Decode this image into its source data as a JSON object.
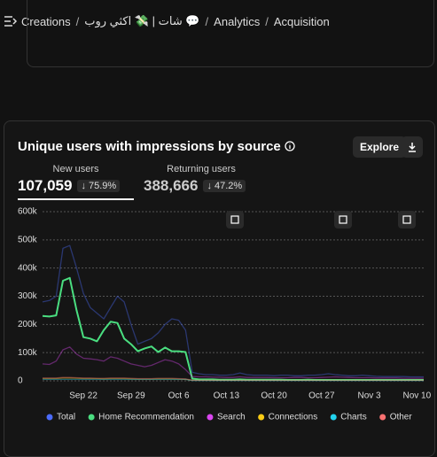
{
  "breadcrumb": [
    "Creations",
    "شات | 💸 اكثي روب 💬",
    "Analytics",
    "Acquisition"
  ],
  "card": {
    "title": "Unique users with impressions by source",
    "explore": "Explore",
    "tabs": [
      {
        "label": "New users",
        "value": "107,059",
        "change": "75.9%"
      },
      {
        "label": "Returning users",
        "value": "388,666",
        "change": "47.2%"
      }
    ]
  },
  "chart_data": {
    "type": "line",
    "categories": [
      null,
      null,
      null,
      null,
      null,
      null,
      "Sep 22",
      null,
      null,
      null,
      null,
      null,
      null,
      "Sep 29",
      null,
      null,
      null,
      null,
      null,
      null,
      "Oct 6",
      null,
      null,
      null,
      null,
      null,
      null,
      "Oct 13",
      null,
      null,
      null,
      null,
      null,
      null,
      "Oct 20",
      null,
      null,
      null,
      null,
      null,
      null,
      "Oct 27",
      null,
      null,
      null,
      null,
      null,
      null,
      "Nov 3",
      null,
      null,
      null,
      null,
      null,
      null,
      "Nov 10",
      null
    ],
    "ylim": [
      0,
      600000
    ],
    "yticks": [
      {
        "value": 0,
        "label": "0"
      },
      {
        "value": 100000,
        "label": "100k"
      },
      {
        "value": 200000,
        "label": "200k"
      },
      {
        "value": 300000,
        "label": "300k"
      },
      {
        "value": 400000,
        "label": "400k"
      },
      {
        "value": 500000,
        "label": "500k"
      },
      {
        "value": 600000,
        "label": "600k"
      }
    ],
    "grid": true,
    "series": [
      {
        "name": "Total",
        "color": "#4b6bfb",
        "values": [
          280000,
          285000,
          300000,
          470000,
          480000,
          400000,
          310000,
          260000,
          240000,
          220000,
          260000,
          300000,
          280000,
          200000,
          130000,
          140000,
          150000,
          170000,
          200000,
          220000,
          215000,
          180000,
          30000,
          25000,
          22000,
          22000,
          20000,
          20000,
          22000,
          28000,
          22000,
          20000,
          20000,
          20000,
          18000,
          20000,
          20000,
          18000,
          18000,
          20000,
          20000,
          22000,
          25000,
          22000,
          20000,
          18000,
          18000,
          20000,
          18000,
          16000,
          15000,
          15000,
          15000,
          15000,
          14000,
          14000,
          14000
        ]
      },
      {
        "name": "Home Recommendation",
        "color": "#4ade80",
        "emphasized": true,
        "values": [
          230000,
          228000,
          232000,
          355000,
          365000,
          250000,
          155000,
          150000,
          140000,
          180000,
          210000,
          205000,
          150000,
          130000,
          105000,
          115000,
          122000,
          102000,
          118000,
          105000,
          105000,
          102000,
          8000,
          5000,
          5000,
          5000,
          4000,
          4000,
          4000,
          5000,
          4000,
          4000,
          4000,
          4000,
          4000,
          4000,
          3000,
          3000,
          3000,
          4000,
          3000,
          3000,
          3000,
          3000,
          3000,
          3000,
          3000,
          3000,
          3000,
          3000,
          3000,
          3000,
          3000,
          3000,
          3000,
          3000,
          3000
        ]
      },
      {
        "name": "Search",
        "color": "#d946ef",
        "values": [
          60000,
          58000,
          70000,
          110000,
          120000,
          95000,
          80000,
          78000,
          75000,
          70000,
          85000,
          80000,
          70000,
          60000,
          55000,
          50000,
          55000,
          65000,
          75000,
          70000,
          60000,
          40000,
          15000,
          14000,
          14000,
          13000,
          13000,
          12000,
          12000,
          14000,
          12000,
          12000,
          12000,
          12000,
          11000,
          11000,
          11000,
          12000,
          12000,
          11000,
          11000,
          12000,
          13000,
          14000,
          13000,
          12000,
          11000,
          11000,
          11000,
          10000,
          10000,
          10000,
          10000,
          9000,
          9000,
          9000,
          9000
        ]
      },
      {
        "name": "Connections",
        "color": "#facc15",
        "values": [
          8000,
          8000,
          8000,
          10000,
          10000,
          9000,
          8000,
          8000,
          8000,
          7000,
          8000,
          8000,
          8000,
          7000,
          6000,
          6000,
          6000,
          7000,
          7000,
          7000,
          6000,
          5000,
          2000,
          2000,
          2000,
          2000,
          2000,
          2000,
          2000,
          2000,
          2000,
          2000,
          2000,
          2000,
          2000,
          2000,
          2000,
          2000,
          2000,
          2000,
          2000,
          2000,
          2000,
          2000,
          2000,
          2000,
          2000,
          2000,
          2000,
          2000,
          2000,
          2000,
          2000,
          2000,
          2000,
          2000,
          2000
        ]
      },
      {
        "name": "Charts",
        "color": "#22d3ee",
        "values": [
          5000,
          5000,
          5000,
          5000,
          5000,
          5000,
          5000,
          5000,
          5000,
          5000,
          5000,
          5000,
          5000,
          5000,
          5000,
          5000,
          5000,
          5000,
          5000,
          5000,
          5000,
          5000,
          1000,
          1000,
          1000,
          1000,
          1000,
          1000,
          1000,
          1000,
          1000,
          1000,
          1000,
          1000,
          1000,
          1000,
          1000,
          1000,
          1000,
          1000,
          1000,
          1000,
          1000,
          1000,
          1000,
          1000,
          1000,
          1000,
          1000,
          1000,
          1000,
          1000,
          1000,
          1000,
          1000,
          1000,
          1000
        ]
      },
      {
        "name": "Other",
        "color": "#f87171",
        "values": [
          10000,
          10000,
          10000,
          12000,
          12000,
          11000,
          10000,
          10000,
          9000,
          9000,
          10000,
          10000,
          10000,
          9000,
          8000,
          8000,
          8000,
          9000,
          9000,
          9000,
          8000,
          7000,
          2000,
          2000,
          2000,
          2000,
          2000,
          2000,
          2000,
          2000,
          2000,
          2000,
          2000,
          2000,
          2000,
          2000,
          2000,
          2000,
          2000,
          2000,
          2000,
          2000,
          2000,
          2000,
          2000,
          2000,
          2000,
          2000,
          2000,
          2000,
          2000,
          2000,
          2000,
          2000,
          2000,
          2000,
          2000
        ]
      }
    ]
  }
}
